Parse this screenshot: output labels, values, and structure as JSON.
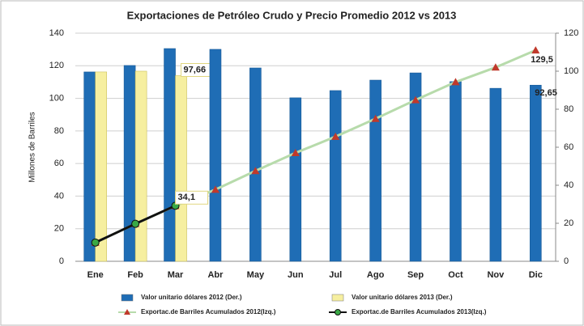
{
  "chart_data": {
    "type": "bar",
    "title": "Exportaciones de Petróleo Crudo y Precio Promedio 2012 vs 2013",
    "y_label": "Millones de Barriles",
    "categories": [
      "Ene",
      "Feb",
      "Mar",
      "Abr",
      "May",
      "Jun",
      "Jul",
      "Ago",
      "Sep",
      "Oct",
      "Nov",
      "Dic"
    ],
    "series": [
      {
        "name": "Valor unitario dólares 2012 (Der.)",
        "type": "bar",
        "axis": "y2",
        "color": "#1f6db5",
        "values": [
          99.6,
          103,
          111.9,
          111.5,
          101.7,
          86,
          89.8,
          95.3,
          99.1,
          94.5,
          91,
          92.65
        ],
        "value_labels": [
          null,
          null,
          null,
          null,
          null,
          null,
          null,
          null,
          null,
          null,
          null,
          "92,65"
        ],
        "label_color": "#1f5fb0"
      },
      {
        "name": "Valor unitario dólares 2013 (Der.)",
        "type": "bar",
        "axis": "y2",
        "color": "#f6efa0",
        "values": [
          99.6,
          100,
          97.66,
          null,
          null,
          null,
          null,
          null,
          null,
          null,
          null,
          null
        ],
        "value_labels": [
          null,
          null,
          "97,66",
          null,
          null,
          null,
          null,
          null,
          null,
          null,
          null,
          null
        ],
        "label_color": "#000000"
      },
      {
        "name": "Exportac.de Barriles Acumulados 2012(Izq.)",
        "type": "line",
        "marker": "triangle",
        "color": "#b7dbab",
        "marker_color": "#c0392b",
        "values": [
          11.5,
          23,
          34,
          44,
          55.5,
          66.5,
          76.5,
          87.5,
          99,
          110,
          119,
          129.5
        ],
        "value_labels": [
          null,
          null,
          null,
          null,
          null,
          null,
          null,
          null,
          null,
          null,
          null,
          "129,5"
        ],
        "label_color": "#d9302c"
      },
      {
        "name": "Exportac.de Barriles Acumulados 2013(Izq.)",
        "type": "line",
        "marker": "circle",
        "color": "#111111",
        "marker_color": "#3aa845",
        "values": [
          11.5,
          23,
          34.1,
          null,
          null,
          null,
          null,
          null,
          null,
          null,
          null,
          null
        ],
        "value_labels": [
          null,
          null,
          "34,1",
          null,
          null,
          null,
          null,
          null,
          null,
          null,
          null,
          null
        ],
        "label_color": "#000000"
      }
    ],
    "ylim": [
      0,
      140
    ],
    "yticks": [
      0,
      20,
      40,
      60,
      80,
      100,
      120,
      140
    ],
    "y2lim": [
      0,
      120
    ],
    "y2ticks": [
      0,
      20,
      40,
      60,
      80,
      100,
      120
    ],
    "grid": true
  }
}
